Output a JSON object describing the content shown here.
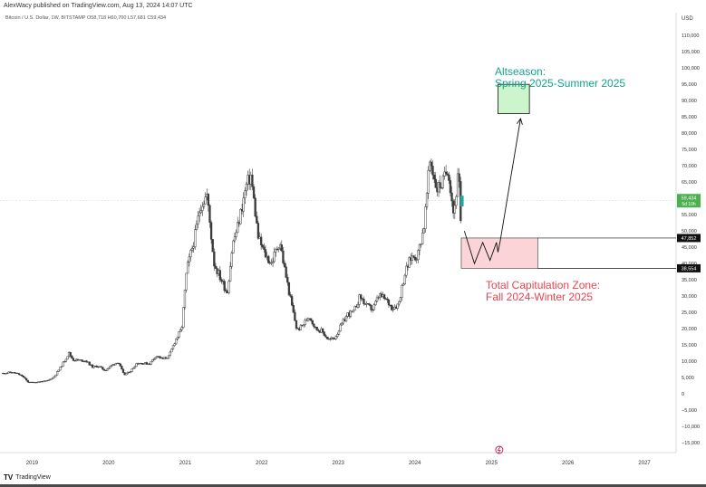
{
  "header": {
    "published_by": "AlexWacy published on TradingView.com, Aug 13, 2024 14:07 UTC",
    "symbol_line": "Bitcoin / U.S. Dollar, 1W, BITSTAMP  O58,718  H60,700  L57,681  C59,434"
  },
  "footer": {
    "brand": "TradingView",
    "logo": "TV"
  },
  "colors": {
    "up": "#26a69a",
    "down": "#ef5350",
    "candle": "#3a3a3a",
    "green_zone_fill": "#ccf5cc",
    "red_zone_fill": "#fad4d6",
    "altseason_text": "#12a38e",
    "capitulation_text": "#e8454f",
    "price_tag": "#4caf50"
  },
  "chart_data": {
    "type": "line",
    "series": [
      {
        "values": [
          [
            "2018-08-15",
            6300
          ],
          [
            "2018-09-15",
            6600
          ],
          [
            "2018-10-15",
            6400
          ],
          [
            "2018-11-15",
            5500
          ],
          [
            "2018-12-15",
            3500
          ],
          [
            "2019-01-15",
            3600
          ],
          [
            "2019-02-15",
            3800
          ],
          [
            "2019-03-15",
            4000
          ],
          [
            "2019-04-15",
            5200
          ],
          [
            "2019-05-15",
            8000
          ],
          [
            "2019-06-26",
            12500
          ],
          [
            "2019-07-15",
            10500
          ],
          [
            "2019-08-15",
            10300
          ],
          [
            "2019-09-15",
            10200
          ],
          [
            "2019-10-15",
            8300
          ],
          [
            "2019-11-15",
            8500
          ],
          [
            "2019-12-15",
            7200
          ],
          [
            "2020-01-15",
            8700
          ],
          [
            "2020-02-15",
            9900
          ],
          [
            "2020-03-15",
            5800
          ],
          [
            "2020-04-15",
            7000
          ],
          [
            "2020-05-15",
            9500
          ],
          [
            "2020-06-15",
            9400
          ],
          [
            "2020-07-15",
            9300
          ],
          [
            "2020-08-15",
            11800
          ],
          [
            "2020-09-15",
            10700
          ],
          [
            "2020-10-15",
            11500
          ],
          [
            "2020-11-15",
            16500
          ],
          [
            "2020-12-15",
            20000
          ],
          [
            "2021-01-08",
            38000
          ],
          [
            "2021-02-15",
            48000
          ],
          [
            "2021-03-15",
            58000
          ],
          [
            "2021-04-14",
            61000
          ],
          [
            "2021-05-19",
            40000
          ],
          [
            "2021-06-15",
            36000
          ],
          [
            "2021-07-20",
            31000
          ],
          [
            "2021-08-15",
            46000
          ],
          [
            "2021-09-07",
            51000
          ],
          [
            "2021-10-20",
            64000
          ],
          [
            "2021-11-10",
            67000
          ],
          [
            "2021-12-15",
            48000
          ],
          [
            "2022-01-15",
            43000
          ],
          [
            "2022-02-15",
            40000
          ],
          [
            "2022-03-28",
            47000
          ],
          [
            "2022-04-15",
            40000
          ],
          [
            "2022-05-15",
            30000
          ],
          [
            "2022-06-18",
            19500
          ],
          [
            "2022-07-15",
            21000
          ],
          [
            "2022-08-15",
            24000
          ],
          [
            "2022-09-15",
            20000
          ],
          [
            "2022-10-15",
            19300
          ],
          [
            "2022-11-15",
            16600
          ],
          [
            "2022-12-15",
            17200
          ],
          [
            "2023-01-15",
            21000
          ],
          [
            "2023-02-15",
            24500
          ],
          [
            "2023-03-15",
            25000
          ],
          [
            "2023-04-15",
            30000
          ],
          [
            "2023-05-15",
            27000
          ],
          [
            "2023-06-15",
            26000
          ],
          [
            "2023-07-15",
            30300
          ],
          [
            "2023-08-15",
            29000
          ],
          [
            "2023-09-15",
            26500
          ],
          [
            "2023-10-15",
            27500
          ],
          [
            "2023-11-15",
            37000
          ],
          [
            "2023-12-15",
            42000
          ],
          [
            "2024-01-15",
            42500
          ],
          [
            "2024-02-15",
            52000
          ],
          [
            "2024-03-14",
            72000
          ],
          [
            "2024-04-15",
            63000
          ],
          [
            "2024-05-15",
            65000
          ],
          [
            "2024-06-07",
            70000
          ],
          [
            "2024-07-05",
            55000
          ],
          [
            "2024-07-29",
            69000
          ],
          [
            "2024-08-05",
            50000
          ],
          [
            "2024-08-13",
            59434
          ]
        ]
      }
    ],
    "x_ticks": [
      "2019",
      "2020",
      "2021",
      "2022",
      "2023",
      "2024",
      "2025",
      "2026",
      "2027"
    ],
    "y_ticks": [
      115000,
      110000,
      105000,
      100000,
      95000,
      90000,
      85000,
      80000,
      75000,
      70000,
      65000,
      60000,
      55000,
      50000,
      45000,
      40000,
      35000,
      30000,
      25000,
      20000,
      15000,
      10000,
      5000,
      0,
      -5000,
      -10000,
      -15000
    ],
    "ylabel": "USD",
    "ylim": [
      -18000,
      117000
    ],
    "xlim": [
      "2018-08-01",
      "2027-06-01"
    ],
    "grid": false,
    "last_price": {
      "value": "59,434",
      "countdown": "5d 10h"
    },
    "levels": [
      {
        "label": "47,852",
        "value": 47852
      },
      {
        "label": "38,554",
        "value": 38554
      }
    ],
    "annotations": {
      "altseason": {
        "line1": "Altseason:",
        "line2": "Spring 2025-Summer 2025",
        "x_from": "2025-02-01",
        "x_to": "2025-07-01",
        "y_from": 86000,
        "y_to": 95000
      },
      "capitulation": {
        "line1": "Total Capitulation Zone:",
        "line2": "Fall 2024-Winter 2025",
        "x_from": "2024-08-10",
        "x_to": "2025-08-10",
        "y_from": 38554,
        "y_to": 47852
      },
      "projection_path": [
        [
          "2024-08-25",
          50000
        ],
        [
          "2024-10-12",
          40000
        ],
        [
          "2024-11-20",
          46500
        ],
        [
          "2024-12-25",
          41000
        ],
        [
          "2025-01-25",
          46500
        ],
        [
          "2025-02-01",
          43500
        ],
        [
          "2025-02-12",
          47000
        ],
        [
          "2025-05-20",
          84500
        ]
      ]
    }
  }
}
